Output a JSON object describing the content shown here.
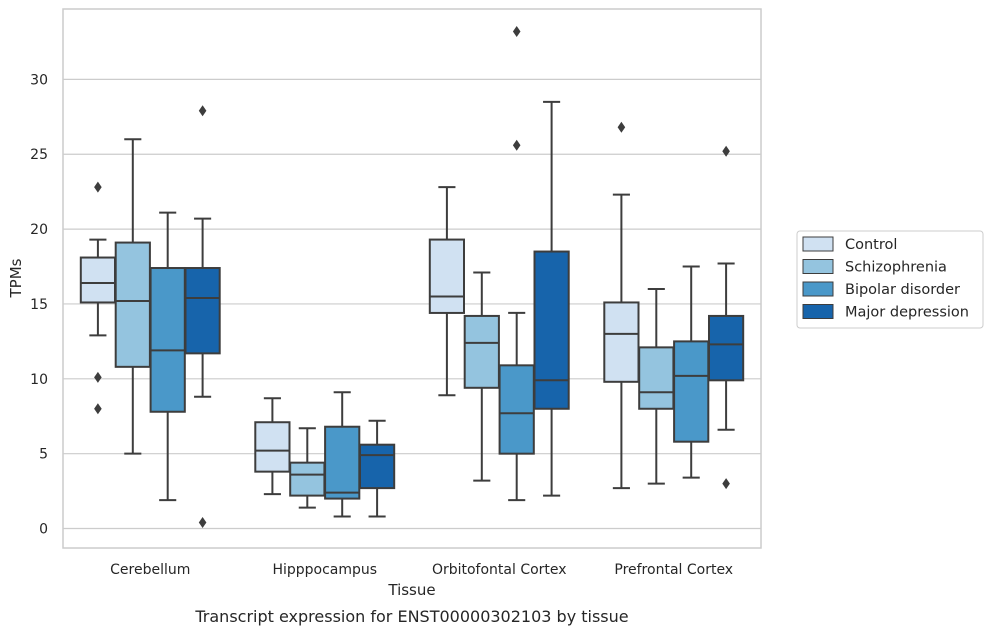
{
  "chart_data": {
    "type": "box",
    "xlabel": "Tissue",
    "ylabel": "TPMs",
    "caption": "Transcript expression for ENST00000302103 by tissue",
    "ylim": [
      -1.3,
      34.7
    ],
    "yticks": [
      0,
      5,
      10,
      15,
      20,
      25,
      30
    ],
    "grid": "horizontal",
    "legend_position": "right",
    "categories": [
      "Cerebellum",
      "Hipppocampus",
      "Orbitofontal Cortex",
      "Prefrontal Cortex"
    ],
    "series": [
      {
        "name": "Control",
        "color": "#d0e1f2",
        "boxes": [
          {
            "whislo": 12.9,
            "q1": 15.1,
            "med": 16.4,
            "q3": 18.1,
            "whishi": 19.3,
            "fliers": [
              22.8,
              10.1,
              8.0
            ]
          },
          {
            "whislo": 2.3,
            "q1": 3.8,
            "med": 5.2,
            "q3": 7.1,
            "whishi": 8.7,
            "fliers": []
          },
          {
            "whislo": 8.9,
            "q1": 14.4,
            "med": 15.5,
            "q3": 19.3,
            "whishi": 22.8,
            "fliers": []
          },
          {
            "whislo": 2.7,
            "q1": 9.8,
            "med": 13.0,
            "q3": 15.1,
            "whishi": 22.3,
            "fliers": [
              26.8
            ]
          }
        ]
      },
      {
        "name": "Schizophrenia",
        "color": "#94c4df",
        "boxes": [
          {
            "whislo": 5.0,
            "q1": 10.8,
            "med": 15.2,
            "q3": 19.1,
            "whishi": 26.0,
            "fliers": []
          },
          {
            "whislo": 1.4,
            "q1": 2.2,
            "med": 3.6,
            "q3": 4.4,
            "whishi": 6.7,
            "fliers": []
          },
          {
            "whislo": 3.2,
            "q1": 9.4,
            "med": 12.4,
            "q3": 14.2,
            "whishi": 17.1,
            "fliers": []
          },
          {
            "whislo": 3.0,
            "q1": 8.0,
            "med": 9.1,
            "q3": 12.1,
            "whishi": 16.0,
            "fliers": []
          }
        ]
      },
      {
        "name": "Bipolar disorder",
        "color": "#4a98c9",
        "boxes": [
          {
            "whislo": 1.9,
            "q1": 7.8,
            "med": 11.9,
            "q3": 17.4,
            "whishi": 21.1,
            "fliers": []
          },
          {
            "whislo": 0.8,
            "q1": 2.0,
            "med": 2.4,
            "q3": 6.8,
            "whishi": 9.1,
            "fliers": []
          },
          {
            "whislo": 1.9,
            "q1": 5.0,
            "med": 7.7,
            "q3": 10.9,
            "whishi": 14.4,
            "fliers": [
              33.2,
              25.6
            ]
          },
          {
            "whislo": 3.4,
            "q1": 5.8,
            "med": 10.2,
            "q3": 12.5,
            "whishi": 17.5,
            "fliers": []
          }
        ]
      },
      {
        "name": "Major depression",
        "color": "#1764ab",
        "boxes": [
          {
            "whislo": 8.8,
            "q1": 11.7,
            "med": 15.4,
            "q3": 17.4,
            "whishi": 20.7,
            "fliers": [
              27.9,
              0.4
            ]
          },
          {
            "whislo": 0.8,
            "q1": 2.7,
            "med": 4.9,
            "q3": 5.6,
            "whishi": 7.2,
            "fliers": []
          },
          {
            "whislo": 2.2,
            "q1": 8.0,
            "med": 9.9,
            "q3": 18.5,
            "whishi": 28.5,
            "fliers": []
          },
          {
            "whislo": 6.6,
            "q1": 9.9,
            "med": 12.3,
            "q3": 14.2,
            "whishi": 17.7,
            "fliers": [
              25.2,
              3.0
            ]
          }
        ]
      }
    ]
  }
}
